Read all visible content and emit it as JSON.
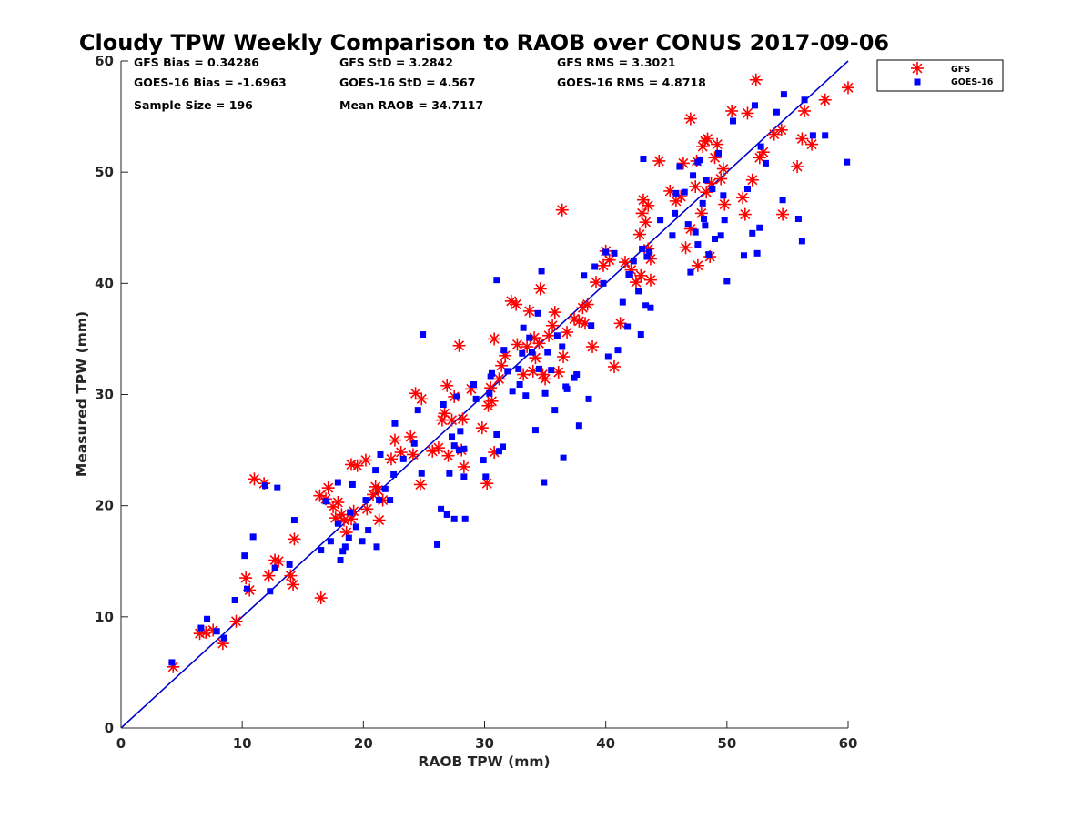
{
  "chart_data": {
    "type": "scatter",
    "title": "Cloudy TPW Weekly Comparison to RAOB over CONUS 2017-09-06",
    "xlabel": "RAOB TPW (mm)",
    "ylabel": "Measured TPW (mm)",
    "xlim": [
      0,
      60
    ],
    "ylim": [
      0,
      60
    ],
    "xticks": [
      0,
      10,
      20,
      30,
      40,
      50,
      60
    ],
    "yticks": [
      0,
      10,
      20,
      30,
      40,
      50,
      60
    ],
    "grid": false,
    "legend_position": "outside-top-right",
    "reference_line": {
      "x": [
        0,
        60
      ],
      "y": [
        0,
        60
      ],
      "color": "#0000cc"
    },
    "stats": [
      "GFS Bias = 0.34286",
      "GFS StD = 3.2842",
      "GFS RMS = 3.3021",
      "GOES-16 Bias = -1.6963",
      "GOES-16 StD = 4.567",
      "GOES-16 RMS = 4.8718",
      "Sample Size = 196",
      "Mean RAOB = 34.7117"
    ],
    "series": [
      {
        "name": "GFS",
        "marker": "asterisk",
        "color": "#ff0000",
        "points": [
          [
            4.3,
            5.5
          ],
          [
            6.5,
            8.5
          ],
          [
            7.0,
            8.6
          ],
          [
            7.6,
            8.8
          ],
          [
            8.4,
            7.6
          ],
          [
            9.5,
            9.6
          ],
          [
            10.3,
            13.5
          ],
          [
            10.6,
            12.4
          ],
          [
            11.0,
            22.4
          ],
          [
            11.8,
            22.0
          ],
          [
            12.2,
            13.7
          ],
          [
            12.7,
            15.1
          ],
          [
            13.0,
            15.0
          ],
          [
            14.2,
            12.9
          ],
          [
            14.0,
            13.7
          ],
          [
            14.3,
            17.0
          ],
          [
            16.5,
            11.7
          ],
          [
            16.4,
            20.9
          ],
          [
            16.9,
            20.6
          ],
          [
            17.1,
            21.6
          ],
          [
            17.5,
            19.9
          ],
          [
            17.9,
            20.3
          ],
          [
            18.2,
            19.2
          ],
          [
            18.4,
            18.7
          ],
          [
            18.6,
            17.6
          ],
          [
            19.0,
            18.8
          ],
          [
            19.2,
            19.5
          ],
          [
            19.0,
            23.7
          ],
          [
            19.5,
            23.6
          ],
          [
            20.2,
            24.1
          ],
          [
            20.3,
            19.7
          ],
          [
            20.8,
            21.0
          ],
          [
            21.2,
            21.4
          ],
          [
            21.3,
            18.7
          ],
          [
            21.6,
            20.5
          ],
          [
            22.3,
            24.2
          ],
          [
            22.6,
            25.9
          ],
          [
            23.1,
            24.8
          ],
          [
            23.9,
            26.2
          ],
          [
            24.1,
            24.6
          ],
          [
            24.3,
            30.1
          ],
          [
            24.8,
            29.6
          ],
          [
            24.7,
            21.9
          ],
          [
            26.2,
            25.2
          ],
          [
            26.5,
            27.7
          ],
          [
            26.7,
            28.3
          ],
          [
            26.9,
            30.8
          ],
          [
            27.0,
            24.5
          ],
          [
            27.3,
            27.7
          ],
          [
            27.5,
            29.8
          ],
          [
            28.1,
            25.0
          ],
          [
            28.3,
            23.5
          ],
          [
            28.2,
            27.8
          ],
          [
            27.9,
            34.4
          ],
          [
            28.9,
            30.5
          ],
          [
            29.8,
            27.0
          ],
          [
            30.2,
            22.0
          ],
          [
            30.3,
            29.0
          ],
          [
            30.5,
            30.6
          ],
          [
            30.6,
            29.4
          ],
          [
            30.8,
            35.0
          ],
          [
            31.2,
            31.4
          ],
          [
            31.4,
            32.6
          ],
          [
            31.7,
            33.5
          ],
          [
            32.2,
            38.4
          ],
          [
            32.6,
            38.1
          ],
          [
            32.7,
            34.5
          ],
          [
            33.2,
            31.8
          ],
          [
            33.5,
            34.3
          ],
          [
            33.7,
            37.5
          ],
          [
            34.0,
            32.1
          ],
          [
            34.2,
            33.3
          ],
          [
            34.5,
            34.6
          ],
          [
            34.6,
            39.5
          ],
          [
            34.8,
            31.8
          ],
          [
            35.0,
            31.4
          ],
          [
            35.3,
            35.3
          ],
          [
            35.6,
            36.2
          ],
          [
            35.8,
            37.4
          ],
          [
            36.1,
            32.0
          ],
          [
            36.4,
            46.6
          ],
          [
            36.5,
            33.4
          ],
          [
            36.8,
            35.6
          ],
          [
            37.4,
            36.8
          ],
          [
            37.8,
            36.6
          ],
          [
            38.1,
            37.8
          ],
          [
            38.3,
            36.4
          ],
          [
            38.5,
            38.1
          ],
          [
            38.9,
            34.3
          ],
          [
            39.2,
            40.1
          ],
          [
            39.8,
            41.6
          ],
          [
            40.0,
            42.9
          ],
          [
            40.3,
            42.1
          ],
          [
            40.7,
            32.5
          ],
          [
            41.2,
            36.4
          ],
          [
            41.6,
            41.9
          ],
          [
            42.1,
            41.2
          ],
          [
            42.5,
            40.1
          ],
          [
            42.8,
            44.4
          ],
          [
            43.0,
            46.3
          ],
          [
            43.1,
            47.5
          ],
          [
            43.3,
            45.5
          ],
          [
            43.5,
            47.0
          ],
          [
            43.5,
            43.1
          ],
          [
            43.7,
            42.2
          ],
          [
            43.7,
            40.3
          ],
          [
            44.4,
            51.0
          ],
          [
            45.8,
            47.4
          ],
          [
            46.2,
            47.8
          ],
          [
            46.4,
            50.8
          ],
          [
            46.6,
            43.2
          ],
          [
            47.0,
            44.9
          ],
          [
            47.0,
            54.8
          ],
          [
            47.4,
            48.7
          ],
          [
            47.5,
            51.0
          ],
          [
            47.6,
            41.6
          ],
          [
            47.9,
            46.3
          ],
          [
            48.0,
            52.3
          ],
          [
            48.2,
            52.8
          ],
          [
            48.3,
            48.2
          ],
          [
            48.4,
            53.0
          ],
          [
            48.6,
            42.4
          ],
          [
            48.7,
            49.0
          ],
          [
            49.0,
            51.3
          ],
          [
            49.2,
            52.5
          ],
          [
            49.5,
            49.4
          ],
          [
            49.7,
            50.3
          ],
          [
            49.8,
            47.1
          ],
          [
            50.4,
            55.5
          ],
          [
            51.3,
            47.7
          ],
          [
            51.5,
            46.2
          ],
          [
            51.7,
            55.3
          ],
          [
            52.1,
            49.3
          ],
          [
            52.4,
            58.3
          ],
          [
            52.7,
            51.3
          ],
          [
            53.0,
            51.8
          ],
          [
            53.9,
            53.4
          ],
          [
            54.5,
            53.8
          ],
          [
            54.6,
            46.2
          ],
          [
            55.8,
            50.5
          ],
          [
            56.2,
            53.0
          ],
          [
            56.4,
            55.5
          ],
          [
            57.0,
            52.5
          ],
          [
            58.1,
            56.5
          ],
          [
            60.0,
            57.6
          ],
          [
            45.3,
            48.3
          ],
          [
            42.9,
            40.7
          ],
          [
            34.1,
            35.1
          ],
          [
            25.7,
            24.9
          ],
          [
            21.0,
            21.7
          ],
          [
            17.7,
            18.9
          ],
          [
            30.8,
            24.8
          ]
        ]
      },
      {
        "name": "GOES-16",
        "marker": "square",
        "color": "#0000ff",
        "points": [
          [
            4.2,
            5.9
          ],
          [
            6.6,
            9.0
          ],
          [
            7.1,
            9.8
          ],
          [
            7.9,
            8.7
          ],
          [
            8.5,
            8.1
          ],
          [
            9.4,
            11.5
          ],
          [
            10.2,
            15.5
          ],
          [
            10.4,
            12.5
          ],
          [
            10.9,
            17.2
          ],
          [
            11.9,
            21.8
          ],
          [
            12.3,
            12.3
          ],
          [
            12.7,
            14.4
          ],
          [
            12.9,
            21.6
          ],
          [
            13.9,
            14.7
          ],
          [
            14.3,
            18.7
          ],
          [
            16.5,
            16.0
          ],
          [
            16.9,
            20.4
          ],
          [
            17.3,
            16.8
          ],
          [
            17.9,
            22.1
          ],
          [
            17.9,
            18.4
          ],
          [
            18.1,
            15.1
          ],
          [
            18.3,
            15.9
          ],
          [
            18.5,
            16.3
          ],
          [
            18.8,
            17.1
          ],
          [
            18.9,
            19.4
          ],
          [
            19.1,
            21.9
          ],
          [
            19.4,
            18.1
          ],
          [
            19.9,
            16.8
          ],
          [
            20.2,
            20.5
          ],
          [
            20.4,
            17.8
          ],
          [
            21.0,
            23.2
          ],
          [
            21.1,
            16.3
          ],
          [
            21.3,
            20.5
          ],
          [
            21.4,
            24.6
          ],
          [
            21.8,
            21.5
          ],
          [
            22.2,
            20.5
          ],
          [
            22.5,
            22.8
          ],
          [
            22.6,
            27.4
          ],
          [
            23.3,
            24.2
          ],
          [
            24.2,
            25.6
          ],
          [
            24.5,
            28.6
          ],
          [
            24.8,
            22.9
          ],
          [
            24.9,
            35.4
          ],
          [
            26.1,
            16.5
          ],
          [
            26.4,
            19.7
          ],
          [
            26.6,
            29.1
          ],
          [
            26.9,
            19.2
          ],
          [
            27.1,
            22.9
          ],
          [
            27.3,
            26.2
          ],
          [
            27.5,
            25.4
          ],
          [
            27.5,
            18.8
          ],
          [
            27.7,
            29.8
          ],
          [
            28.0,
            26.7
          ],
          [
            28.3,
            25.1
          ],
          [
            28.4,
            18.8
          ],
          [
            28.3,
            22.6
          ],
          [
            29.1,
            30.9
          ],
          [
            29.9,
            24.1
          ],
          [
            30.1,
            22.6
          ],
          [
            30.4,
            30.1
          ],
          [
            30.5,
            31.6
          ],
          [
            30.6,
            31.9
          ],
          [
            31.0,
            40.3
          ],
          [
            31.0,
            26.4
          ],
          [
            31.2,
            24.9
          ],
          [
            31.5,
            25.3
          ],
          [
            31.6,
            34.0
          ],
          [
            31.9,
            32.1
          ],
          [
            32.3,
            30.3
          ],
          [
            32.8,
            32.3
          ],
          [
            32.9,
            30.9
          ],
          [
            33.2,
            36.0
          ],
          [
            33.4,
            29.9
          ],
          [
            33.7,
            35.1
          ],
          [
            33.9,
            33.8
          ],
          [
            34.2,
            26.8
          ],
          [
            34.4,
            37.3
          ],
          [
            34.5,
            32.3
          ],
          [
            34.7,
            41.1
          ],
          [
            34.9,
            22.1
          ],
          [
            35.0,
            30.1
          ],
          [
            35.2,
            33.8
          ],
          [
            35.5,
            32.2
          ],
          [
            35.8,
            28.6
          ],
          [
            36.0,
            35.3
          ],
          [
            36.4,
            34.3
          ],
          [
            36.5,
            24.3
          ],
          [
            36.7,
            30.7
          ],
          [
            37.4,
            31.5
          ],
          [
            37.6,
            31.8
          ],
          [
            37.8,
            27.2
          ],
          [
            38.2,
            40.7
          ],
          [
            38.6,
            29.6
          ],
          [
            38.8,
            36.2
          ],
          [
            39.1,
            41.5
          ],
          [
            39.8,
            40.0
          ],
          [
            40.0,
            42.8
          ],
          [
            40.2,
            33.4
          ],
          [
            40.7,
            42.7
          ],
          [
            41.0,
            34.0
          ],
          [
            41.4,
            38.3
          ],
          [
            41.8,
            36.1
          ],
          [
            42.0,
            40.8
          ],
          [
            42.3,
            42.0
          ],
          [
            42.7,
            39.3
          ],
          [
            42.9,
            35.4
          ],
          [
            43.0,
            43.1
          ],
          [
            43.1,
            51.2
          ],
          [
            43.3,
            38.0
          ],
          [
            43.4,
            42.4
          ],
          [
            43.7,
            37.8
          ],
          [
            44.5,
            45.7
          ],
          [
            45.5,
            44.3
          ],
          [
            45.8,
            48.1
          ],
          [
            46.1,
            50.5
          ],
          [
            46.5,
            48.2
          ],
          [
            46.8,
            45.3
          ],
          [
            47.0,
            41.0
          ],
          [
            47.2,
            49.7
          ],
          [
            47.4,
            44.6
          ],
          [
            47.6,
            43.5
          ],
          [
            47.8,
            51.1
          ],
          [
            48.0,
            47.2
          ],
          [
            48.1,
            45.8
          ],
          [
            48.2,
            45.2
          ],
          [
            48.3,
            49.3
          ],
          [
            48.5,
            42.6
          ],
          [
            48.8,
            48.5
          ],
          [
            49.0,
            44.0
          ],
          [
            49.3,
            51.7
          ],
          [
            49.5,
            44.3
          ],
          [
            49.7,
            47.9
          ],
          [
            49.8,
            45.7
          ],
          [
            50.0,
            40.2
          ],
          [
            50.5,
            54.6
          ],
          [
            51.4,
            42.5
          ],
          [
            51.7,
            48.5
          ],
          [
            52.1,
            44.5
          ],
          [
            52.3,
            56.0
          ],
          [
            52.5,
            42.7
          ],
          [
            52.7,
            45.0
          ],
          [
            52.8,
            52.3
          ],
          [
            53.2,
            50.8
          ],
          [
            54.1,
            55.4
          ],
          [
            54.6,
            47.5
          ],
          [
            54.7,
            57.0
          ],
          [
            55.9,
            45.8
          ],
          [
            56.2,
            43.8
          ],
          [
            56.4,
            56.5
          ],
          [
            57.1,
            53.3
          ],
          [
            58.1,
            53.3
          ],
          [
            59.9,
            50.9
          ],
          [
            43.6,
            42.8
          ],
          [
            47.6,
            50.9
          ],
          [
            41.9,
            40.8
          ],
          [
            36.8,
            30.5
          ],
          [
            33.1,
            33.7
          ],
          [
            29.3,
            29.6
          ],
          [
            27.9,
            25.0
          ],
          [
            45.7,
            46.3
          ]
        ]
      }
    ]
  }
}
